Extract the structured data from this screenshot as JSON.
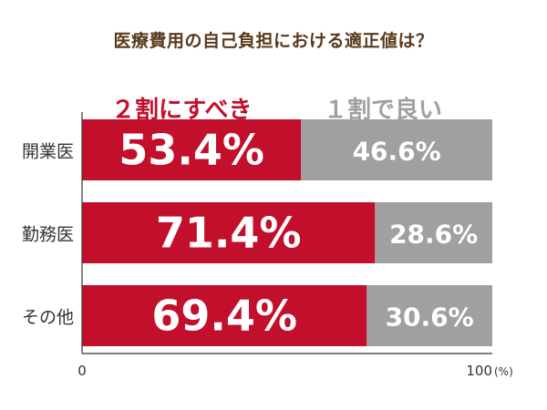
{
  "chart_data": {
    "type": "bar",
    "stacked": true,
    "orientation": "horizontal",
    "title": "医療費用の自己負担における適正値は？",
    "categories": [
      "開業医",
      "勤務医",
      "その他"
    ],
    "series": [
      {
        "name": "２割にすべき",
        "values": [
          53.4,
          71.4,
          69.4
        ],
        "labels": [
          "53.4%",
          "71.4%",
          "69.4%"
        ],
        "color": "#c20f2b"
      },
      {
        "name": "１割で良い",
        "values": [
          46.6,
          28.6,
          30.6
        ],
        "labels": [
          "46.6%",
          "28.6%",
          "30.6%"
        ],
        "color": "#a0a0a0"
      }
    ],
    "xlim": [
      0,
      100
    ],
    "x_tick_labels": [
      "0",
      "100"
    ],
    "x_unit": "(%)",
    "legend_position": "top",
    "grid": false
  }
}
